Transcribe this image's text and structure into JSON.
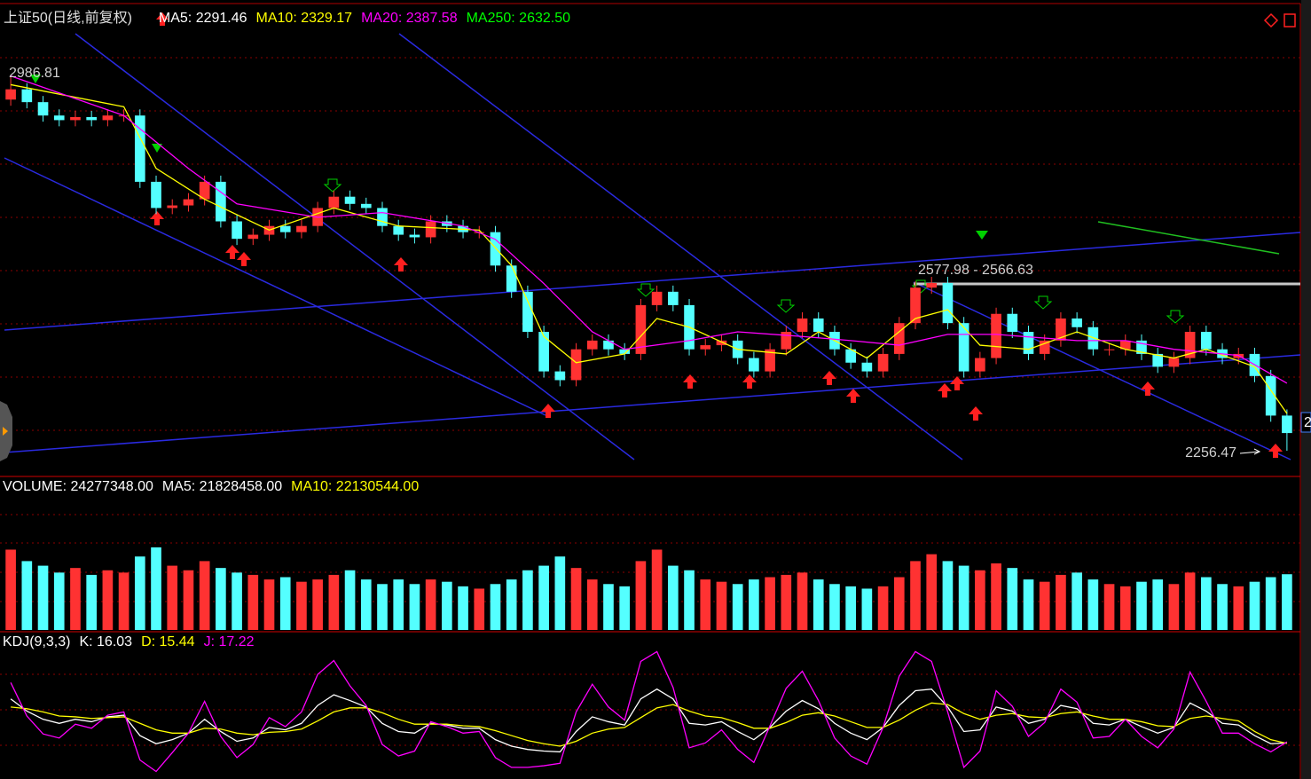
{
  "chart_data": [
    {
      "type": "candlestick",
      "title": "上证50(日线,前复权)",
      "legend": [
        {
          "label": "MA5: 2291.46",
          "color": "#ffffff"
        },
        {
          "label": "MA10: 2329.17",
          "color": "#ffff00"
        },
        {
          "label": "MA20: 2387.58",
          "color": "#ff00ff"
        },
        {
          "label": "MA250: 2632.50",
          "color": "#00ff00"
        }
      ],
      "up_color": "#ff3232",
      "down_color": "#54ffff",
      "ylim": [
        2210,
        3120
      ],
      "open": [
        2940,
        2960,
        2935,
        2909,
        2900,
        2906,
        2900,
        2909,
        2909,
        2780,
        2729,
        2734,
        2746,
        2780,
        2703,
        2669,
        2677,
        2694,
        2682,
        2694,
        2729,
        2751,
        2737,
        2729,
        2694,
        2677,
        2672,
        2703,
        2694,
        2682,
        2682,
        2617,
        2566,
        2488,
        2411,
        2394,
        2454,
        2471,
        2454,
        2445,
        2540,
        2566,
        2540,
        2454,
        2462,
        2471,
        2437,
        2411,
        2454,
        2488,
        2514,
        2488,
        2454,
        2428,
        2411,
        2445,
        2505,
        2574,
        2583,
        2505,
        2411,
        2437,
        2523,
        2488,
        2445,
        2471,
        2514,
        2497,
        2454,
        2454,
        2471,
        2445,
        2420,
        2437,
        2488,
        2454,
        2437,
        2445,
        2402,
        2325
      ],
      "high": [
        2986.81,
        2972,
        2947,
        2921,
        2918,
        2918,
        2921,
        2921,
        2921,
        2792,
        2746,
        2758,
        2792,
        2792,
        2715,
        2689,
        2706,
        2706,
        2706,
        2741,
        2763,
        2763,
        2749,
        2741,
        2706,
        2689,
        2715,
        2715,
        2706,
        2694,
        2694,
        2629,
        2578,
        2500,
        2423,
        2466,
        2483,
        2483,
        2466,
        2552,
        2578,
        2578,
        2552,
        2474,
        2483,
        2483,
        2449,
        2466,
        2500,
        2526,
        2526,
        2500,
        2466,
        2440,
        2457,
        2517,
        2586,
        2595,
        2595,
        2517,
        2449,
        2535,
        2535,
        2500,
        2483,
        2526,
        2526,
        2509,
        2466,
        2483,
        2483,
        2457,
        2449,
        2500,
        2500,
        2466,
        2457,
        2457,
        2414,
        2337
      ],
      "low": [
        2928,
        2923,
        2897,
        2888,
        2888,
        2888,
        2888,
        2897,
        2768,
        2717,
        2717,
        2722,
        2734,
        2691,
        2657,
        2657,
        2665,
        2670,
        2670,
        2682,
        2717,
        2725,
        2717,
        2682,
        2665,
        2660,
        2660,
        2682,
        2670,
        2670,
        2605,
        2554,
        2476,
        2399,
        2382,
        2382,
        2442,
        2442,
        2433,
        2433,
        2528,
        2528,
        2442,
        2442,
        2450,
        2425,
        2399,
        2399,
        2442,
        2476,
        2476,
        2442,
        2416,
        2399,
        2399,
        2433,
        2493,
        2562,
        2493,
        2399,
        2399,
        2425,
        2476,
        2433,
        2433,
        2459,
        2485,
        2442,
        2442,
        2442,
        2433,
        2408,
        2408,
        2425,
        2442,
        2425,
        2425,
        2390,
        2313,
        2256.47
      ],
      "close": [
        2960,
        2935,
        2909,
        2900,
        2906,
        2900,
        2909,
        2909,
        2780,
        2729,
        2734,
        2746,
        2780,
        2703,
        2669,
        2677,
        2694,
        2682,
        2694,
        2729,
        2751,
        2737,
        2729,
        2694,
        2677,
        2672,
        2703,
        2694,
        2682,
        2682,
        2617,
        2566,
        2488,
        2411,
        2394,
        2454,
        2471,
        2454,
        2445,
        2540,
        2566,
        2540,
        2454,
        2462,
        2471,
        2437,
        2411,
        2454,
        2488,
        2514,
        2488,
        2454,
        2428,
        2411,
        2445,
        2505,
        2574,
        2583,
        2505,
        2411,
        2437,
        2523,
        2488,
        2445,
        2471,
        2514,
        2497,
        2454,
        2454,
        2471,
        2445,
        2420,
        2437,
        2488,
        2454,
        2437,
        2445,
        2402,
        2325,
        2291
      ],
      "lines": [
        {
          "color": "#ffff00",
          "x": [
            0,
            7,
            9,
            12,
            16,
            20,
            24,
            29,
            31,
            33,
            35,
            38,
            40,
            42,
            45,
            48,
            50,
            53,
            56,
            58,
            60,
            63,
            66,
            69,
            72,
            74,
            77,
            79
          ],
          "values": [
            2969,
            2926,
            2806,
            2746,
            2686,
            2729,
            2694,
            2686,
            2617,
            2479,
            2428,
            2445,
            2514,
            2497,
            2454,
            2445,
            2488,
            2437,
            2514,
            2531,
            2462,
            2454,
            2488,
            2454,
            2437,
            2454,
            2420,
            2329
          ]
        },
        {
          "color": "#ff00ff",
          "x": [
            0,
            7,
            11,
            14,
            19,
            23,
            28,
            30,
            33,
            36,
            38,
            42,
            45,
            49,
            52,
            55,
            58,
            61,
            66,
            69,
            72,
            76,
            79
          ],
          "values": [
            2986,
            2909,
            2806,
            2737,
            2711,
            2720,
            2694,
            2668,
            2582,
            2488,
            2454,
            2471,
            2488,
            2479,
            2471,
            2462,
            2483,
            2483,
            2471,
            2471,
            2454,
            2442,
            2388
          ]
        }
      ],
      "annotations": [
        "2986.81",
        "2577.98 - 2566.63",
        "2256.47"
      ],
      "axis_badge": "2"
    },
    {
      "type": "bar",
      "legend": [
        {
          "label": "VOLUME: 24277348.00",
          "color": "#ffffff"
        },
        {
          "label": "MA5: 21828458.00",
          "color": "#ffffff"
        },
        {
          "label": "MA10: 22130544.00",
          "color": "#ffff00"
        }
      ],
      "ylim": [
        0,
        58000000
      ],
      "values": [
        35000000,
        30000000,
        28000000,
        25000000,
        27000000,
        24000000,
        26000000,
        25000000,
        32000000,
        36000000,
        28000000,
        26000000,
        30000000,
        27000000,
        25000000,
        24000000,
        22000000,
        23000000,
        21000000,
        22000000,
        24000000,
        26000000,
        22000000,
        20000000,
        22000000,
        20000000,
        22000000,
        21000000,
        19000000,
        18000000,
        20000000,
        22000000,
        26000000,
        28000000,
        32000000,
        27000000,
        22000000,
        20000000,
        19000000,
        30000000,
        35000000,
        28000000,
        26000000,
        22000000,
        21000000,
        20000000,
        22000000,
        23000000,
        24000000,
        25000000,
        22000000,
        20000000,
        19000000,
        18000000,
        19000000,
        23000000,
        30000000,
        33000000,
        30000000,
        28000000,
        26000000,
        29000000,
        27000000,
        22000000,
        21000000,
        24000000,
        25000000,
        22000000,
        20000000,
        19000000,
        21000000,
        22000000,
        20000000,
        25000000,
        23000000,
        20000000,
        19000000,
        21000000,
        23000000,
        24277348
      ]
    },
    {
      "type": "line",
      "legend": [
        {
          "label": "KDJ(9,3,3)",
          "color": "#ffffff"
        },
        {
          "label": "K: 16.03",
          "color": "#ffffff"
        },
        {
          "label": "D: 15.44",
          "color": "#ffff00"
        },
        {
          "label": "J: 17.22",
          "color": "#ff00ff"
        }
      ],
      "ylim": [
        -25,
        135
      ],
      "series": [
        {
          "color": "#ffffff",
          "values": [
            70,
            55,
            45,
            40,
            45,
            42,
            48,
            50,
            25,
            15,
            20,
            28,
            45,
            30,
            18,
            22,
            35,
            32,
            40,
            62,
            75,
            68,
            60,
            40,
            30,
            28,
            40,
            38,
            34,
            34,
            20,
            12,
            8,
            6,
            5,
            30,
            48,
            42,
            38,
            70,
            82,
            70,
            40,
            38,
            42,
            30,
            20,
            35,
            55,
            68,
            58,
            40,
            28,
            20,
            35,
            62,
            80,
            82,
            60,
            30,
            32,
            60,
            55,
            40,
            45,
            62,
            58,
            40,
            38,
            45,
            36,
            28,
            35,
            65,
            55,
            40,
            38,
            25,
            15,
            16.03
          ]
        },
        {
          "color": "#ffff00",
          "values": [
            60,
            58,
            54,
            49,
            48,
            46,
            47,
            48,
            40,
            32,
            28,
            28,
            34,
            33,
            28,
            26,
            29,
            30,
            33,
            43,
            54,
            59,
            59,
            53,
            45,
            39,
            39,
            39,
            37,
            36,
            31,
            25,
            19,
            15,
            12,
            18,
            28,
            33,
            35,
            47,
            59,
            63,
            55,
            49,
            47,
            41,
            34,
            34,
            41,
            50,
            53,
            49,
            42,
            35,
            35,
            44,
            56,
            65,
            63,
            52,
            45,
            50,
            52,
            48,
            47,
            52,
            54,
            49,
            45,
            45,
            42,
            37,
            36,
            46,
            49,
            46,
            43,
            30,
            20,
            15.44
          ]
        },
        {
          "color": "#ff00ff",
          "values": [
            90,
            49,
            27,
            22,
            39,
            34,
            50,
            54,
            -5,
            -19,
            4,
            28,
            67,
            24,
            -2,
            14,
            47,
            36,
            54,
            100,
            117,
            86,
            62,
            14,
            0,
            6,
            42,
            36,
            28,
            30,
            -2,
            -14,
            -14,
            -12,
            -9,
            54,
            88,
            60,
            44,
            116,
            128,
            84,
            10,
            16,
            32,
            8,
            -8,
            37,
            83,
            104,
            68,
            22,
            0,
            -10,
            35,
            98,
            128,
            116,
            54,
            -14,
            6,
            80,
            61,
            24,
            41,
            82,
            66,
            22,
            24,
            45,
            24,
            10,
            33,
            103,
            67,
            28,
            28,
            15,
            5,
            17.22
          ]
        }
      ]
    }
  ]
}
